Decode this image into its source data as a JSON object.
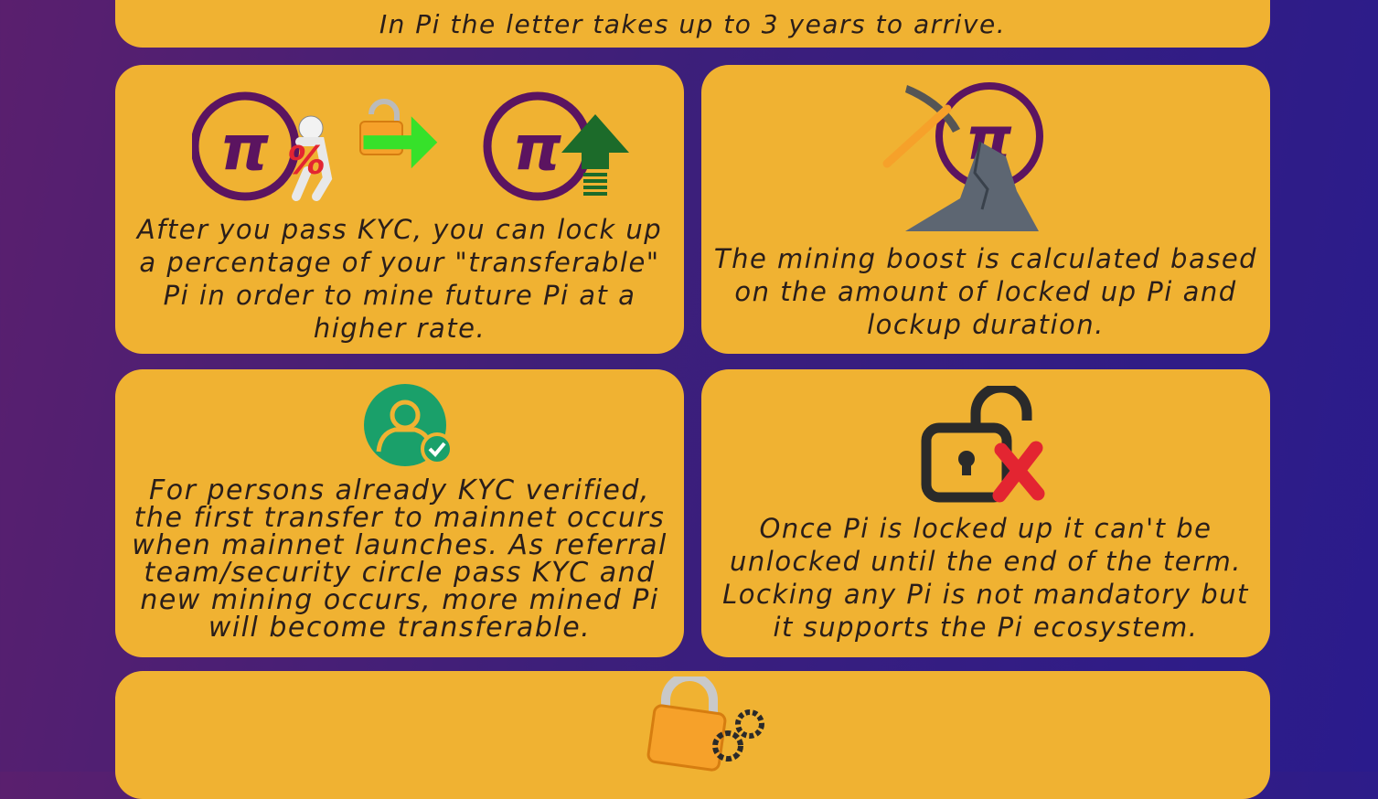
{
  "top_card": {
    "text": "In Pi the letter takes up to 3 years to arrive."
  },
  "cards": [
    {
      "text": "After you pass KYC, you can lock up a percentage of your \"transferable\" Pi in order to mine future Pi at a higher rate.",
      "icons": [
        "pi-percent-icon",
        "lock-arrow-icon",
        "pi-up-arrow-icon"
      ]
    },
    {
      "text": "The mining boost is calculated based on the amount of locked up Pi and lockup duration.",
      "icons": [
        "pickaxe-pi-icon"
      ]
    },
    {
      "text": "For persons already KYC verified, the first transfer to mainnet occurs when mainnet launches. As referral team/security circle pass KYC and new mining occurs, more mined Pi will become transferable.",
      "icons": [
        "verified-user-icon"
      ]
    },
    {
      "text": "Once Pi is locked up it can't be unlocked until the end of the term. Locking any Pi is not mandatory but it supports the Pi ecosystem.",
      "icons": [
        "unlock-x-icon"
      ]
    },
    {
      "text": "",
      "icons": [
        "lock-gear-icon"
      ]
    }
  ],
  "colors": {
    "card": "#f0b232",
    "pi_ring": "#5b1460",
    "arrow_green": "#36e12a",
    "badge_green": "#1aa06a",
    "x_red": "#e32531"
  }
}
